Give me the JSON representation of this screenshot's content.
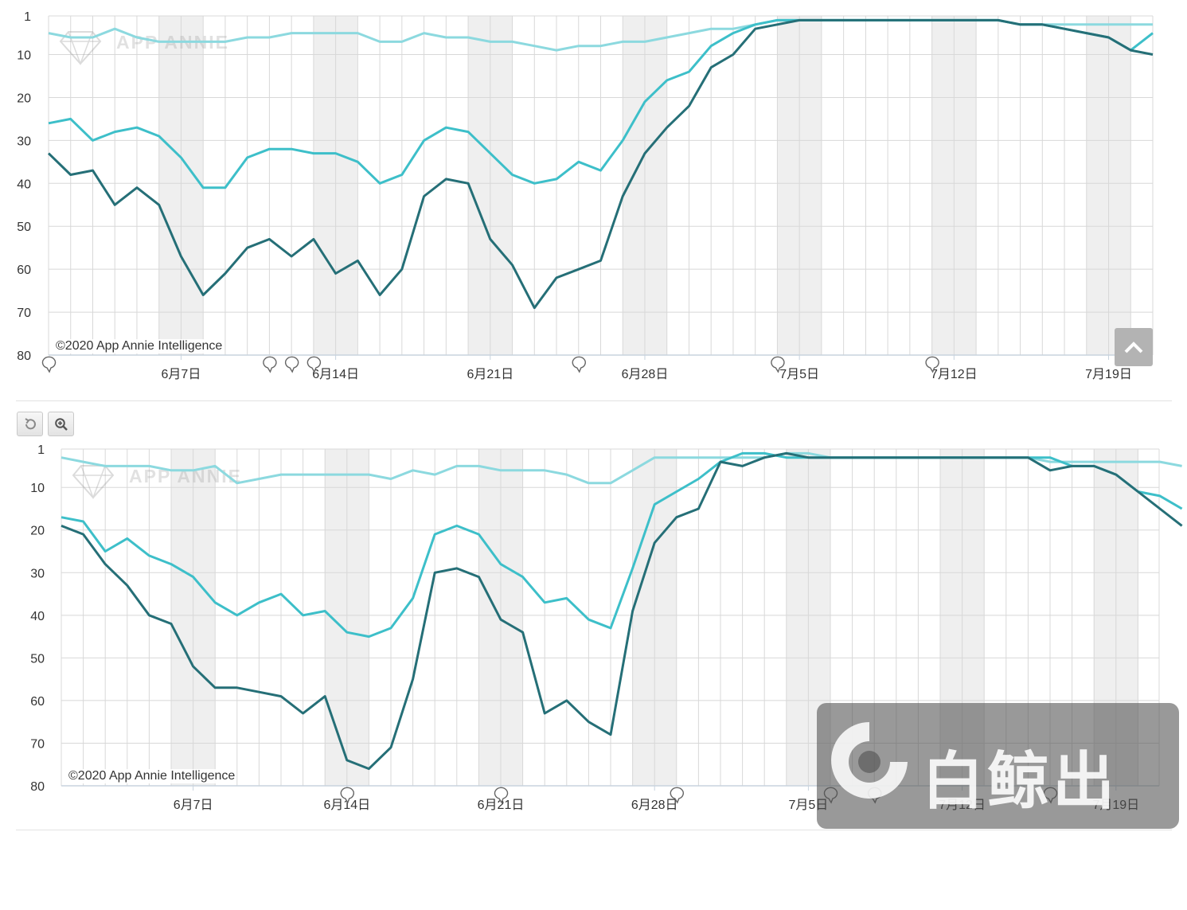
{
  "colors": {
    "series_dark": "#256f77",
    "series_mid": "#3dbfc9",
    "series_light": "#8cd9df",
    "weekend_band": "#efefef",
    "grid": "#d8d8d8",
    "axis_text": "#333333"
  },
  "toolbar": {
    "reset_icon": "undo-icon",
    "zoom_icon": "zoom-in-icon"
  },
  "watermark_text": "APP ANNIE",
  "brand_logo_text": "白鲸出海",
  "chart_data": [
    {
      "type": "line",
      "title": "",
      "credit": "©2020 App Annie Intelligence",
      "y_reversed": true,
      "ylim": [
        1,
        80
      ],
      "yticks": [
        "1",
        "10",
        "20",
        "30",
        "40",
        "50",
        "60",
        "70",
        "80"
      ],
      "ytick_values": [
        1,
        10,
        20,
        30,
        40,
        50,
        60,
        70,
        80
      ],
      "x_start": "2020-06-01",
      "xtick_labels": [
        "6月7日",
        "6月14日",
        "6月21日",
        "6月28日",
        "7月5日",
        "7月12日",
        "7月19日"
      ],
      "xtick_dates": [
        "2020-06-07",
        "2020-06-14",
        "2020-06-21",
        "2020-06-28",
        "2020-07-05",
        "2020-07-12",
        "2020-07-19"
      ],
      "weekend_bands": [
        [
          "2020-06-06",
          "2020-06-08"
        ],
        [
          "2020-06-13",
          "2020-06-15"
        ],
        [
          "2020-06-20",
          "2020-06-22"
        ],
        [
          "2020-06-27",
          "2020-06-29"
        ],
        [
          "2020-07-04",
          "2020-07-06"
        ],
        [
          "2020-07-11",
          "2020-07-13"
        ],
        [
          "2020-07-18",
          "2020-07-20"
        ]
      ],
      "annotation_dates": [
        "2020-06-01",
        "2020-06-11",
        "2020-06-12",
        "2020-06-13",
        "2020-06-25",
        "2020-07-04",
        "2020-07-11"
      ],
      "grid": true,
      "legend": "none",
      "series": [
        {
          "color_key": "series_light",
          "values": [
            5,
            6,
            6,
            4,
            6,
            7,
            7,
            7,
            7,
            6,
            6,
            5,
            5,
            5,
            5,
            7,
            7,
            5,
            6,
            6,
            7,
            7,
            8,
            9,
            8,
            8,
            7,
            7,
            6,
            5,
            4,
            4,
            3,
            2,
            2,
            2,
            2,
            2,
            2,
            2,
            2,
            2,
            2,
            2,
            3,
            3,
            3,
            3,
            3,
            3,
            3
          ]
        },
        {
          "color_key": "series_mid",
          "values": [
            26,
            25,
            30,
            28,
            27,
            29,
            34,
            41,
            41,
            34,
            32,
            32,
            33,
            33,
            35,
            40,
            38,
            30,
            27,
            28,
            33,
            38,
            40,
            39,
            35,
            37,
            30,
            21,
            16,
            14,
            8,
            5,
            3,
            2,
            2,
            2,
            2,
            2,
            2,
            2,
            2,
            2,
            2,
            2,
            3,
            3,
            4,
            5,
            6,
            9,
            5
          ]
        },
        {
          "color_key": "series_dark",
          "values": [
            33,
            38,
            37,
            45,
            41,
            45,
            57,
            66,
            61,
            55,
            53,
            57,
            53,
            61,
            58,
            66,
            60,
            43,
            39,
            40,
            53,
            59,
            69,
            62,
            60,
            58,
            43,
            33,
            27,
            22,
            13,
            10,
            4,
            3,
            2,
            2,
            2,
            2,
            2,
            2,
            2,
            2,
            2,
            2,
            3,
            3,
            4,
            5,
            6,
            9,
            10
          ]
        }
      ]
    },
    {
      "type": "line",
      "title": "",
      "credit": "©2020 App Annie Intelligence",
      "y_reversed": true,
      "ylim": [
        1,
        80
      ],
      "yticks": [
        "1",
        "10",
        "20",
        "30",
        "40",
        "50",
        "60",
        "70",
        "80"
      ],
      "ytick_values": [
        1,
        10,
        20,
        30,
        40,
        50,
        60,
        70,
        80
      ],
      "x_start": "2020-06-01",
      "xtick_labels": [
        "6月7日",
        "6月14日",
        "6月21日",
        "6月28日",
        "7月5日",
        "7月12日",
        "7月19日"
      ],
      "xtick_dates": [
        "2020-06-07",
        "2020-06-14",
        "2020-06-21",
        "2020-06-28",
        "2020-07-05",
        "2020-07-12",
        "2020-07-19"
      ],
      "weekend_bands": [
        [
          "2020-06-06",
          "2020-06-08"
        ],
        [
          "2020-06-13",
          "2020-06-15"
        ],
        [
          "2020-06-20",
          "2020-06-22"
        ],
        [
          "2020-06-27",
          "2020-06-29"
        ],
        [
          "2020-07-04",
          "2020-07-06"
        ],
        [
          "2020-07-11",
          "2020-07-13"
        ],
        [
          "2020-07-18",
          "2020-07-20"
        ]
      ],
      "annotation_dates": [
        "2020-06-14",
        "2020-06-21",
        "2020-06-29",
        "2020-07-06",
        "2020-07-08",
        "2020-07-16"
      ],
      "grid": true,
      "legend": "none",
      "series": [
        {
          "color_key": "series_light",
          "values": [
            3,
            4,
            5,
            5,
            5,
            6,
            6,
            5,
            9,
            8,
            7,
            7,
            7,
            7,
            7,
            8,
            6,
            7,
            5,
            5,
            6,
            6,
            6,
            7,
            9,
            9,
            6,
            3,
            3,
            3,
            3,
            3,
            3,
            2,
            2,
            3,
            3,
            3,
            3,
            3,
            3,
            3,
            3,
            3,
            3,
            4,
            4,
            4,
            4,
            4,
            4,
            5
          ]
        },
        {
          "color_key": "series_mid",
          "values": [
            17,
            18,
            25,
            22,
            26,
            28,
            31,
            37,
            40,
            37,
            35,
            40,
            39,
            44,
            45,
            43,
            36,
            21,
            19,
            21,
            28,
            31,
            37,
            36,
            41,
            43,
            29,
            14,
            11,
            8,
            4,
            2,
            2,
            3,
            3,
            3,
            3,
            3,
            3,
            3,
            3,
            3,
            3,
            3,
            3,
            3,
            5,
            5,
            7,
            11,
            12,
            15
          ]
        },
        {
          "color_key": "series_dark",
          "values": [
            19,
            21,
            28,
            33,
            40,
            42,
            52,
            57,
            57,
            58,
            59,
            63,
            59,
            74,
            76,
            71,
            55,
            30,
            29,
            31,
            41,
            44,
            63,
            60,
            65,
            68,
            39,
            23,
            17,
            15,
            4,
            5,
            3,
            2,
            3,
            3,
            3,
            3,
            3,
            3,
            3,
            3,
            3,
            3,
            3,
            6,
            5,
            5,
            7,
            11,
            15,
            19
          ]
        }
      ]
    }
  ]
}
